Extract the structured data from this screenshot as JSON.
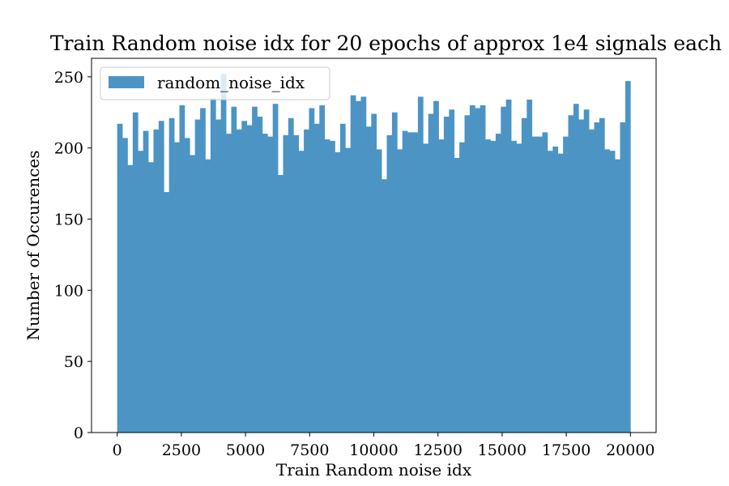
{
  "chart_data": {
    "type": "bar",
    "title": "Train Random noise idx for 20 epochs of approx 1e4 signals each",
    "xlabel": "Train Random noise idx",
    "ylabel": "Number of Occurences",
    "xlim": [
      -1000,
      21000
    ],
    "ylim": [
      0,
      263
    ],
    "xticks": [
      0,
      2500,
      5000,
      7500,
      10000,
      12500,
      15000,
      17500,
      20000
    ],
    "yticks": [
      0,
      50,
      100,
      150,
      200,
      250
    ],
    "legend": {
      "position": "upper-left",
      "entries": [
        "random_noise_idx"
      ]
    },
    "color": "#4c94c4",
    "bin_start": 0,
    "bin_width": 200,
    "series": [
      {
        "name": "random_noise_idx",
        "values": [
          217,
          207,
          188,
          225,
          198,
          212,
          190,
          213,
          219,
          169,
          221,
          204,
          230,
          207,
          195,
          220,
          228,
          192,
          235,
          220,
          252,
          210,
          229,
          213,
          219,
          216,
          229,
          222,
          210,
          208,
          231,
          181,
          209,
          221,
          209,
          198,
          213,
          228,
          217,
          230,
          206,
          205,
          197,
          217,
          200,
          237,
          233,
          236,
          215,
          224,
          199,
          178,
          209,
          225,
          199,
          212,
          211,
          211,
          236,
          203,
          224,
          233,
          206,
          222,
          227,
          193,
          204,
          223,
          230,
          228,
          230,
          206,
          205,
          210,
          229,
          234,
          205,
          203,
          221,
          234,
          208,
          208,
          211,
          198,
          201,
          196,
          208,
          223,
          231,
          220,
          227,
          213,
          218,
          221,
          199,
          198,
          192,
          218,
          247
        ]
      }
    ]
  }
}
